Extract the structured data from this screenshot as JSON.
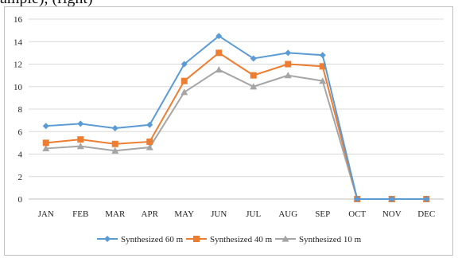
{
  "caption": "ample), (right)",
  "chart_data": {
    "type": "line",
    "title": "",
    "xlabel": "",
    "ylabel": "",
    "categories": [
      "JAN",
      "FEB",
      "MAR",
      "APR",
      "MAY",
      "JUN",
      "JUL",
      "AUG",
      "SEP",
      "OCT",
      "NOV",
      "DEC"
    ],
    "ylim": [
      0,
      16
    ],
    "yticks": [
      0,
      2,
      4,
      6,
      8,
      10,
      12,
      14,
      16
    ],
    "grid": "horizontal",
    "legend_position": "bottom",
    "series": [
      {
        "name": "Synthesized 60 m",
        "color": "#5b9bd5",
        "marker": "diamond",
        "values": [
          6.5,
          6.7,
          6.3,
          6.6,
          12.0,
          14.5,
          12.5,
          13.0,
          12.8,
          0,
          0,
          0
        ]
      },
      {
        "name": "Synthesized 40 m",
        "color": "#ed7d31",
        "marker": "square",
        "values": [
          5.0,
          5.3,
          4.9,
          5.1,
          10.5,
          13.0,
          11.0,
          12.0,
          11.8,
          0,
          0,
          0
        ]
      },
      {
        "name": "Synthesized 10 m",
        "color": "#a5a5a5",
        "marker": "triangle",
        "values": [
          4.5,
          4.7,
          4.3,
          4.6,
          9.5,
          11.5,
          10.0,
          11.0,
          10.5,
          0,
          0,
          0
        ]
      }
    ]
  }
}
